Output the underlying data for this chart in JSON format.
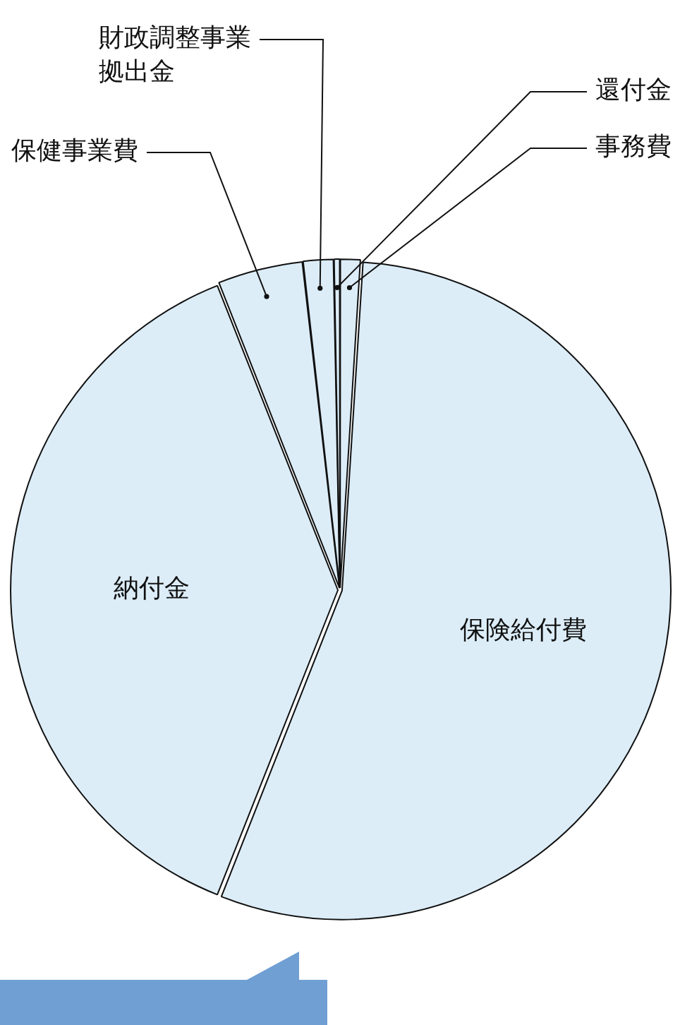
{
  "chart_data": {
    "type": "pie",
    "categories": [
      "事務費",
      "保険給付費",
      "納付金",
      "保健事業費",
      "財政調整事業拠出金",
      "還付金"
    ],
    "values": [
      1.0,
      55.0,
      38.0,
      4.2,
      1.5,
      0.3
    ],
    "colors": [
      "#dcedf8",
      "#dcedf8",
      "#dcedf8",
      "#dcedf8",
      "#dcedf8",
      "#dcedf8"
    ]
  }
}
